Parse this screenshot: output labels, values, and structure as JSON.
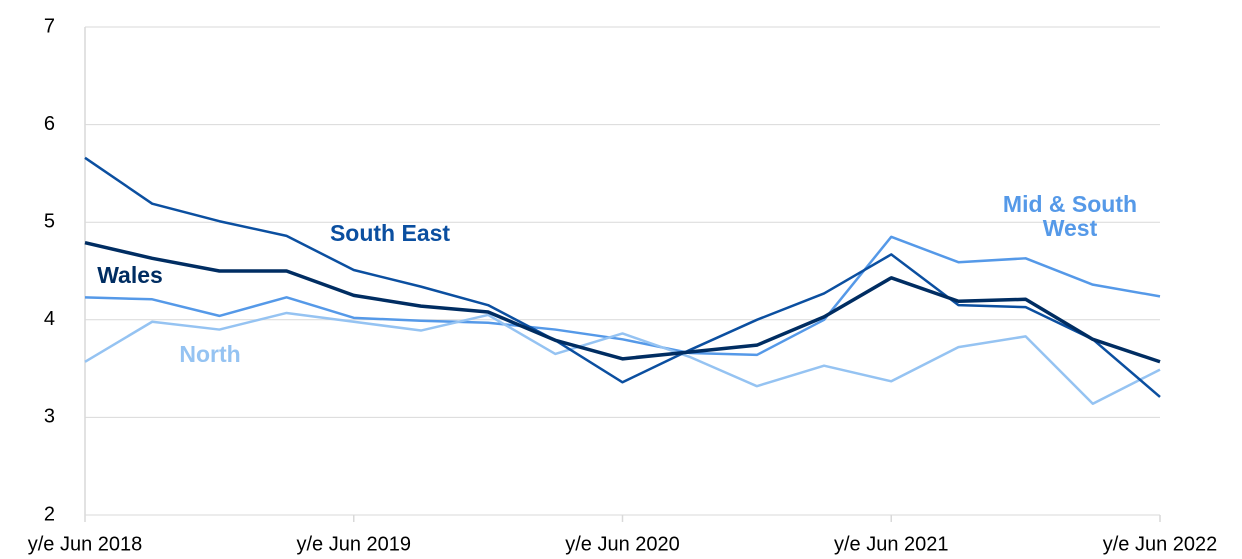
{
  "chart_data": {
    "type": "line",
    "categories": [
      "y/e Jun 2018",
      null,
      null,
      null,
      "y/e Jun 2019",
      null,
      null,
      null,
      "y/e Jun 2020",
      null,
      null,
      null,
      "y/e Jun 2021",
      null,
      null,
      null,
      "y/e Jun 2022"
    ],
    "series": [
      {
        "name": "Mid & South West",
        "color": "#5599e8",
        "values": [
          4.23,
          4.21,
          4.04,
          4.23,
          4.02,
          3.99,
          3.97,
          3.9,
          3.8,
          3.66,
          3.64,
          4.0,
          4.85,
          4.59,
          4.63,
          4.36,
          4.24
        ]
      },
      {
        "name": "North",
        "color": "#95c3f2",
        "values": [
          3.57,
          3.98,
          3.9,
          4.07,
          3.98,
          3.89,
          4.05,
          3.65,
          3.86,
          3.62,
          3.32,
          3.53,
          3.37,
          3.72,
          3.83,
          3.14,
          3.49
        ]
      },
      {
        "name": "South East",
        "color": "#0b4fa0",
        "values": [
          5.66,
          5.19,
          5.01,
          4.86,
          4.51,
          4.34,
          4.15,
          3.79,
          3.36,
          3.69,
          4.0,
          4.27,
          4.67,
          4.15,
          4.13,
          3.8,
          3.21
        ]
      },
      {
        "name": "Wales",
        "color": "#002d62",
        "values": [
          4.79,
          4.63,
          4.5,
          4.5,
          4.25,
          4.14,
          4.08,
          3.79,
          3.6,
          3.67,
          3.74,
          4.03,
          4.43,
          4.19,
          4.21,
          3.8,
          3.57
        ]
      }
    ],
    "ylim": [
      2,
      7
    ],
    "yticks": [
      2,
      3,
      4,
      5,
      6,
      7
    ],
    "grid": true
  }
}
